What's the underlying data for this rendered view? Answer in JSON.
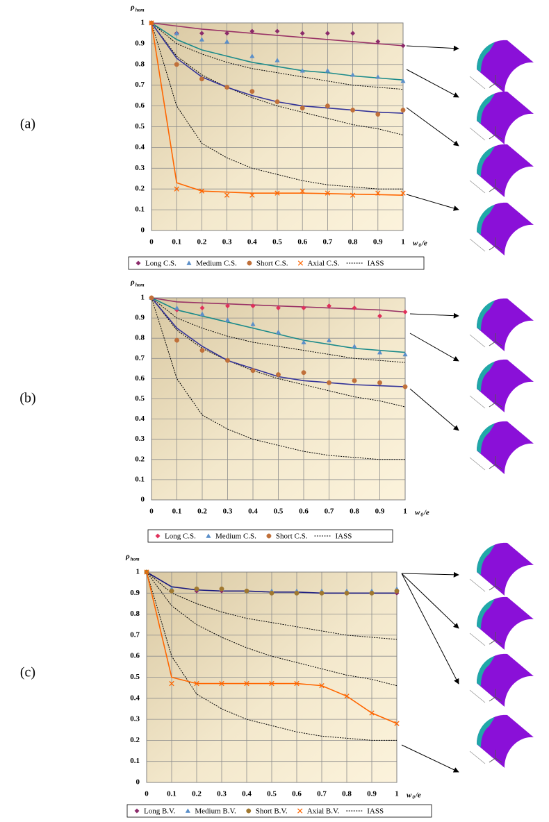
{
  "chart_data": [
    {
      "type": "line",
      "label": "(a)",
      "ylabel": {
        "symbol": "ρ",
        "subscript": "hom"
      },
      "xlabel": {
        "symbol": "w",
        "subscript": "0",
        "rest": "/e"
      },
      "x": [
        0,
        0.1,
        0.2,
        0.3,
        0.4,
        0.5,
        0.6,
        0.7,
        0.8,
        0.9,
        1
      ],
      "xlim": [
        0,
        1
      ],
      "ylim": [
        0,
        1
      ],
      "xticks": [
        0,
        0.1,
        0.2,
        0.3,
        0.4,
        0.5,
        0.6,
        0.7,
        0.8,
        0.9,
        1
      ],
      "yticks": [
        0,
        0.1,
        0.2,
        0.3,
        0.4,
        0.5,
        0.6,
        0.7,
        0.8,
        0.9,
        1
      ],
      "grid": true,
      "series": [
        {
          "name": "Long C.S.",
          "color": "#8b2a6a",
          "line_color": "#993366",
          "marker": "diamond",
          "values": [
            1,
            0.95,
            0.95,
            0.95,
            0.96,
            0.96,
            0.95,
            0.95,
            0.95,
            0.91,
            0.89
          ],
          "curve": [
            1,
            0.985,
            0.97,
            0.96,
            0.95,
            0.94,
            0.93,
            0.92,
            0.91,
            0.9,
            0.89
          ]
        },
        {
          "name": "Medium C.S.",
          "color": "#5b8fc9",
          "line_color": "#1a8a8a",
          "marker": "triangle",
          "values": [
            1,
            0.95,
            0.92,
            0.91,
            0.84,
            0.82,
            0.77,
            0.77,
            0.75,
            0.74,
            0.72
          ],
          "curve": [
            1,
            0.92,
            0.87,
            0.84,
            0.81,
            0.79,
            0.77,
            0.76,
            0.745,
            0.735,
            0.725
          ]
        },
        {
          "name": "Short C.S.",
          "color": "#c0703a",
          "line_color": "#333399",
          "marker": "circle",
          "values": [
            1,
            0.8,
            0.73,
            0.69,
            0.67,
            0.62,
            0.59,
            0.6,
            0.58,
            0.56,
            0.58
          ],
          "curve": [
            1,
            0.83,
            0.74,
            0.69,
            0.65,
            0.62,
            0.6,
            0.59,
            0.58,
            0.57,
            0.565
          ]
        },
        {
          "name": "Axial C.S.",
          "color": "#ff6600",
          "line_color": "#ff6600",
          "marker": "x",
          "values": [
            1,
            0.2,
            0.19,
            0.17,
            0.17,
            0.18,
            0.19,
            0.18,
            0.17,
            0.18,
            0.18
          ],
          "curve": [
            1,
            0.23,
            0.19,
            0.185,
            0.18,
            0.18,
            0.18,
            0.178,
            0.175,
            0.173,
            0.17
          ]
        },
        {
          "name": "IASS",
          "color": "#000000",
          "lines": [
            [
              1,
              0.9,
              0.85,
              0.81,
              0.78,
              0.76,
              0.74,
              0.72,
              0.7,
              0.69,
              0.68
            ],
            [
              1,
              0.84,
              0.75,
              0.69,
              0.64,
              0.6,
              0.57,
              0.54,
              0.51,
              0.49,
              0.46
            ],
            [
              1,
              0.6,
              0.42,
              0.35,
              0.3,
              0.27,
              0.24,
              0.22,
              0.21,
              0.2,
              0.2
            ]
          ]
        }
      ]
    },
    {
      "type": "line",
      "label": "(b)",
      "ylabel": {
        "symbol": "ρ",
        "subscript": "hom"
      },
      "xlabel": {
        "symbol": "w",
        "subscript": "0",
        "rest": "/e"
      },
      "x": [
        0,
        0.1,
        0.2,
        0.3,
        0.4,
        0.5,
        0.6,
        0.7,
        0.8,
        0.9,
        1
      ],
      "xlim": [
        0,
        1
      ],
      "ylim": [
        0,
        1
      ],
      "xticks": [
        0,
        0.1,
        0.2,
        0.3,
        0.4,
        0.5,
        0.6,
        0.7,
        0.8,
        0.9,
        1
      ],
      "yticks": [
        0,
        0.1,
        0.2,
        0.3,
        0.4,
        0.5,
        0.6,
        0.7,
        0.8,
        0.9,
        1
      ],
      "grid": true,
      "series": [
        {
          "name": "Long C.S.",
          "color": "#e0305a",
          "line_color": "#993366",
          "marker": "diamond",
          "values": [
            1,
            0.94,
            0.95,
            0.96,
            0.96,
            0.95,
            0.95,
            0.96,
            0.95,
            0.91,
            0.93
          ],
          "curve": [
            1,
            0.98,
            0.975,
            0.97,
            0.965,
            0.96,
            0.955,
            0.95,
            0.945,
            0.94,
            0.93
          ]
        },
        {
          "name": "Medium C.S.",
          "color": "#5b8fc9",
          "line_color": "#1a8a8a",
          "marker": "triangle",
          "values": [
            1,
            0.95,
            0.92,
            0.89,
            0.87,
            0.83,
            0.78,
            0.79,
            0.76,
            0.73,
            0.72
          ],
          "curve": [
            1,
            0.94,
            0.91,
            0.88,
            0.85,
            0.82,
            0.79,
            0.77,
            0.75,
            0.74,
            0.73
          ]
        },
        {
          "name": "Short C.S.",
          "color": "#c0703a",
          "line_color": "#333399",
          "marker": "circle",
          "values": [
            1,
            0.79,
            0.74,
            0.69,
            0.64,
            0.62,
            0.63,
            0.58,
            0.59,
            0.58,
            0.56
          ],
          "curve": [
            1,
            0.85,
            0.76,
            0.69,
            0.65,
            0.61,
            0.59,
            0.58,
            0.57,
            0.565,
            0.56
          ]
        },
        {
          "name": "IASS",
          "color": "#000000",
          "lines": [
            [
              1,
              0.9,
              0.85,
              0.81,
              0.78,
              0.76,
              0.74,
              0.72,
              0.7,
              0.69,
              0.68
            ],
            [
              1,
              0.84,
              0.75,
              0.69,
              0.64,
              0.6,
              0.57,
              0.54,
              0.51,
              0.49,
              0.46
            ],
            [
              1,
              0.6,
              0.42,
              0.35,
              0.3,
              0.27,
              0.24,
              0.22,
              0.21,
              0.2,
              0.2
            ]
          ]
        }
      ]
    },
    {
      "type": "line",
      "label": "(c)",
      "ylabel": {
        "symbol": "ρ",
        "subscript": "hom"
      },
      "xlabel": {
        "symbol": "w",
        "subscript": "0",
        "rest": "/e"
      },
      "x": [
        0,
        0.1,
        0.2,
        0.3,
        0.4,
        0.5,
        0.6,
        0.7,
        0.8,
        0.9,
        1
      ],
      "xlim": [
        0,
        1
      ],
      "ylim": [
        0,
        1
      ],
      "xticks": [
        0,
        0.1,
        0.2,
        0.3,
        0.4,
        0.5,
        0.6,
        0.7,
        0.8,
        0.9,
        1
      ],
      "yticks": [
        0,
        0.1,
        0.2,
        0.3,
        0.4,
        0.5,
        0.6,
        0.7,
        0.8,
        0.9,
        1
      ],
      "grid": true,
      "series": [
        {
          "name": "Long B.V.",
          "color": "#8b2a6a",
          "marker": "diamond",
          "values": [
            1,
            0.91,
            0.91,
            0.91,
            0.91,
            0.9,
            0.9,
            0.9,
            0.9,
            0.9,
            0.9
          ]
        },
        {
          "name": "Medium B.V.",
          "color": "#5b8fc9",
          "marker": "triangle",
          "values": [
            1,
            0.92,
            0.92,
            0.92,
            0.91,
            0.91,
            0.91,
            0.91,
            0.91,
            0.91,
            0.92
          ]
        },
        {
          "name": "Short B.V.",
          "color": "#a07830",
          "line_color": "#1a1a80",
          "marker": "circle",
          "values": [
            1,
            0.91,
            0.92,
            0.92,
            0.91,
            0.9,
            0.9,
            0.9,
            0.9,
            0.9,
            0.91
          ],
          "curve": [
            1,
            0.93,
            0.915,
            0.91,
            0.91,
            0.905,
            0.905,
            0.9,
            0.9,
            0.9,
            0.9
          ]
        },
        {
          "name": "Axial B.V.",
          "color": "#ff6600",
          "line_color": "#ff6600",
          "marker": "x",
          "values": [
            1,
            0.47,
            0.47,
            0.47,
            0.47,
            0.47,
            0.47,
            0.46,
            0.41,
            0.33,
            0.28
          ],
          "curve": [
            1,
            0.5,
            0.47,
            0.47,
            0.47,
            0.47,
            0.47,
            0.46,
            0.41,
            0.33,
            0.28
          ]
        },
        {
          "name": "IASS",
          "color": "#000000",
          "lines": [
            [
              1,
              0.9,
              0.85,
              0.81,
              0.78,
              0.76,
              0.74,
              0.72,
              0.7,
              0.69,
              0.68
            ],
            [
              1,
              0.84,
              0.75,
              0.69,
              0.64,
              0.6,
              0.57,
              0.54,
              0.51,
              0.49,
              0.46
            ],
            [
              1,
              0.6,
              0.42,
              0.35,
              0.3,
              0.27,
              0.24,
              0.22,
              0.21,
              0.2,
              0.2
            ]
          ]
        }
      ]
    }
  ]
}
